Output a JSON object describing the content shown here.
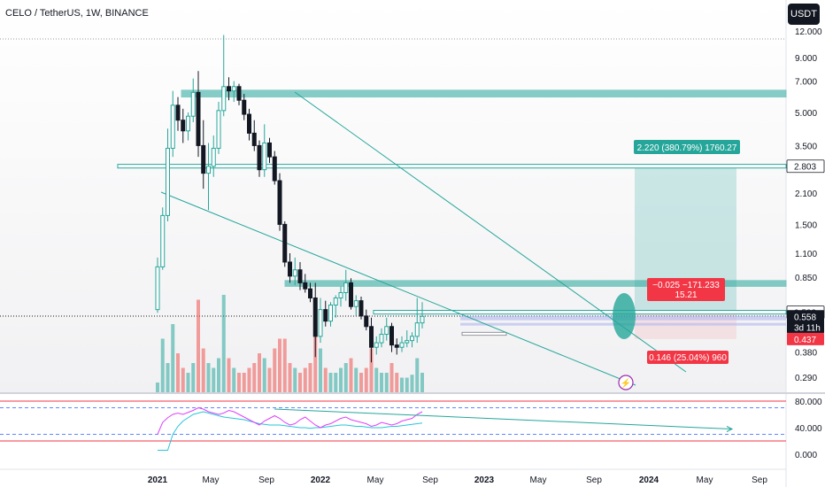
{
  "header": {
    "title": "CELO / TetherUS, 1W, BINANCE",
    "currency_button": "USDT"
  },
  "colors": {
    "up": "#26a69a",
    "down": "#ef5350",
    "zone": "#26a69a",
    "trendline": "#26a69a",
    "rsi_line": "#e040fb",
    "rsi_band": "#f23645",
    "current_price_bg": "#131722",
    "level_bg": "#26a69a",
    "red_label_bg": "#f23645"
  },
  "chart_data": [
    {
      "type": "candlestick",
      "symbol": "CELO / TetherUS",
      "interval": "1W",
      "exchange": "BINANCE",
      "log_scale": true,
      "y_range": [
        0.26,
        13.0
      ],
      "y_ticks": [
        "12.000",
        "9.000",
        "7.000",
        "5.000",
        "3.500",
        "2.803",
        "2.100",
        "1.500",
        "1.100",
        "0.850",
        "0.583",
        "0.558",
        "0.437",
        "0.380",
        "0.290"
      ],
      "x_ticks": [
        "2021",
        "May",
        "Sep",
        "2022",
        "May",
        "Sep",
        "2023",
        "May",
        "Sep",
        "2024",
        "May",
        "Sep"
      ],
      "price_labels": [
        {
          "value": "2.803",
          "color": "#ffffff",
          "text_color": "#131722",
          "bordered": true
        },
        {
          "value": "0.583",
          "color": "#ffffff",
          "text_color": "#131722",
          "bordered": true
        },
        {
          "value": "0.558",
          "color": "#131722",
          "text_color": "#ffffff",
          "extra": "3d 11h"
        },
        {
          "value": "0.437",
          "color": "#f23645",
          "text_color": "#ffffff"
        }
      ],
      "zones": [
        {
          "from": 5.9,
          "to": 6.35
        },
        {
          "from": 0.77,
          "to": 0.82
        }
      ],
      "horizontal_levels": [
        2.8,
        0.583
      ],
      "target_box": {
        "label": "2.220 (380.79%) 1760.27",
        "entry": 0.583,
        "target": 2.803
      },
      "stop_box": {
        "label": "0.146 (25.04%) 960",
        "entry": 0.583,
        "stop": 0.437
      },
      "measure_label": "−0.025 −171.233\n15.21",
      "series": [
        {
          "values_ohlc": [
            [
              0.6,
              1.05,
              0.58,
              0.95
            ],
            [
              0.95,
              1.8,
              0.92,
              1.65
            ],
            [
              1.65,
              4.2,
              1.55,
              3.4
            ],
            [
              3.4,
              6.3,
              3.1,
              5.4
            ],
            [
              5.4,
              5.9,
              4.1,
              4.6
            ],
            [
              4.6,
              5.2,
              3.6,
              4.1
            ],
            [
              4.1,
              5.0,
              3.7,
              4.8
            ],
            [
              4.8,
              7.2,
              4.5,
              6.2
            ],
            [
              6.2,
              7.8,
              3.1,
              3.5
            ],
            [
              3.5,
              4.6,
              2.2,
              2.6
            ],
            [
              2.6,
              3.6,
              1.75,
              2.8
            ],
            [
              2.8,
              3.9,
              2.5,
              3.4
            ],
            [
              3.4,
              5.6,
              3.2,
              5.1
            ],
            [
              5.1,
              11.5,
              4.8,
              6.6
            ],
            [
              6.6,
              7.3,
              5.7,
              6.3
            ],
            [
              6.3,
              7.0,
              5.6,
              6.6
            ],
            [
              6.6,
              6.8,
              5.4,
              5.7
            ],
            [
              5.7,
              6.1,
              4.6,
              4.9
            ],
            [
              4.9,
              5.2,
              3.7,
              4.0
            ],
            [
              4.0,
              4.6,
              3.3,
              3.5
            ],
            [
              3.5,
              3.7,
              2.5,
              2.7
            ],
            [
              2.7,
              4.4,
              2.5,
              3.6
            ],
            [
              3.6,
              3.8,
              2.9,
              3.1
            ],
            [
              3.1,
              3.3,
              2.3,
              2.4
            ],
            [
              2.4,
              2.6,
              1.4,
              1.5
            ],
            [
              1.5,
              1.55,
              0.95,
              1.0
            ],
            [
              1.0,
              1.1,
              0.8,
              0.86
            ],
            [
              0.86,
              1.05,
              0.78,
              0.92
            ],
            [
              0.92,
              1.0,
              0.74,
              0.8
            ],
            [
              0.8,
              0.88,
              0.72,
              0.75
            ],
            [
              0.75,
              0.8,
              0.65,
              0.68
            ],
            [
              0.68,
              0.8,
              0.36,
              0.45
            ],
            [
              0.45,
              0.68,
              0.42,
              0.6
            ],
            [
              0.6,
              0.66,
              0.5,
              0.53
            ],
            [
              0.53,
              0.65,
              0.5,
              0.63
            ],
            [
              0.63,
              0.7,
              0.55,
              0.68
            ],
            [
              0.68,
              0.77,
              0.62,
              0.72
            ],
            [
              0.72,
              0.92,
              0.66,
              0.8
            ],
            [
              0.8,
              0.84,
              0.6,
              0.62
            ],
            [
              0.62,
              0.7,
              0.56,
              0.66
            ],
            [
              0.66,
              0.69,
              0.54,
              0.56
            ],
            [
              0.56,
              0.6,
              0.48,
              0.5
            ],
            [
              0.5,
              0.55,
              0.34,
              0.4
            ],
            [
              0.4,
              0.45,
              0.37,
              0.42
            ],
            [
              0.42,
              0.49,
              0.4,
              0.46
            ],
            [
              0.46,
              0.55,
              0.43,
              0.5
            ],
            [
              0.5,
              0.52,
              0.38,
              0.41
            ],
            [
              0.41,
              0.44,
              0.37,
              0.4
            ],
            [
              0.4,
              0.45,
              0.38,
              0.42
            ],
            [
              0.42,
              0.48,
              0.4,
              0.43
            ],
            [
              0.43,
              0.47,
              0.4,
              0.45
            ],
            [
              0.45,
              0.68,
              0.42,
              0.52
            ],
            [
              0.52,
              0.65,
              0.49,
              0.558
            ]
          ]
        }
      ],
      "volume_series": [
        {
          "values": [
            0.1,
            0.55,
            0.3,
            0.7,
            0.4,
            0.25,
            0.2,
            0.3,
            0.95,
            0.45,
            0.3,
            0.25,
            0.35,
            1.0,
            0.35,
            0.25,
            0.2,
            0.2,
            0.25,
            0.3,
            0.4,
            0.35,
            0.25,
            0.45,
            0.55,
            0.55,
            0.3,
            0.25,
            0.2,
            0.25,
            0.3,
            0.7,
            0.45,
            0.25,
            0.2,
            0.2,
            0.25,
            0.3,
            0.35,
            0.25,
            0.2,
            0.25,
            0.45,
            0.25,
            0.2,
            0.2,
            0.3,
            0.2,
            0.15,
            0.15,
            0.18,
            0.35,
            0.2
          ]
        }
      ]
    },
    {
      "type": "line",
      "indicator": "RSI",
      "y_range": [
        0,
        100
      ],
      "y_ticks": [
        "80.000",
        "40.000",
        "0.000"
      ],
      "bands": [
        70,
        30
      ],
      "series": [
        {
          "values": [
            30,
            48,
            55,
            60,
            62,
            60,
            63,
            66,
            70,
            68,
            64,
            62,
            60,
            62,
            66,
            64,
            60,
            56,
            52,
            48,
            44,
            50,
            54,
            58,
            54,
            48,
            44,
            46,
            52,
            56,
            50,
            44,
            40,
            44,
            46,
            50,
            54,
            56,
            52,
            50,
            48,
            46,
            42,
            44,
            48,
            46,
            44,
            46,
            50,
            52,
            54,
            60,
            64
          ]
        },
        {
          "values": [
            6,
            6,
            6,
            30,
            42,
            50,
            55,
            60,
            62,
            64,
            62,
            60,
            58,
            56,
            55,
            54,
            53,
            52,
            50,
            48,
            46,
            45,
            44,
            44,
            44,
            43,
            42,
            41,
            40,
            40,
            39,
            40,
            40,
            41,
            42,
            43,
            44,
            44,
            43,
            42,
            42,
            41,
            40,
            40,
            40,
            41,
            42,
            42,
            43,
            44,
            45,
            46,
            47
          ]
        }
      ]
    }
  ]
}
